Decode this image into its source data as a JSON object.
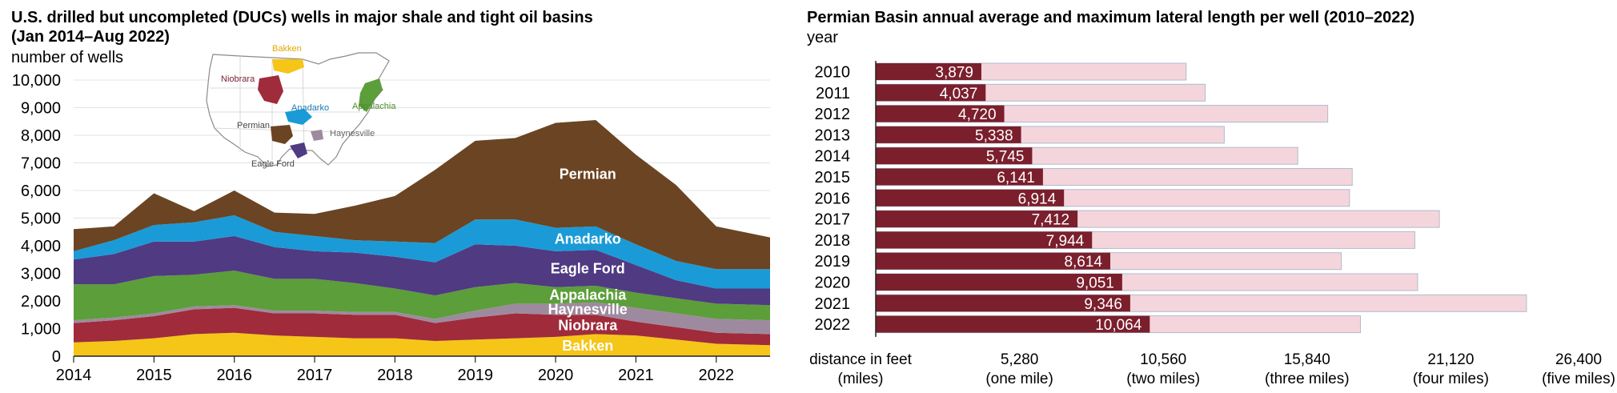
{
  "left_chart": {
    "title_line1": "U.S. drilled but uncompleted (DUCs) wells in major shale and tight oil basins",
    "title_line2": "(Jan 2014–Aug 2022)",
    "ylabel": "number of wells",
    "map_labels": [
      "Bakken",
      "Niobrara",
      "Anadarko",
      "Appalachia",
      "Permian",
      "Haynesville",
      "Eagle Ford"
    ]
  },
  "right_chart": {
    "title": "Permian Basin annual average and maximum lateral length per well (2010–2022)",
    "ylabel": "year"
  },
  "chart_data": [
    {
      "type": "area",
      "stacked": true,
      "title": "U.S. drilled but uncompleted (DUCs) wells in major shale and tight oil basins (Jan 2014–Aug 2022)",
      "ylabel": "number of wells",
      "xlabel": "",
      "ylim": [
        0,
        10000
      ],
      "yticks": [
        0,
        1000,
        2000,
        3000,
        4000,
        5000,
        6000,
        7000,
        8000,
        9000,
        10000
      ],
      "ytick_labels": [
        "0",
        "1,000",
        "2,000",
        "3,000",
        "4,000",
        "5,000",
        "6,000",
        "7,000",
        "8,000",
        "9,000",
        "10,000"
      ],
      "xlim": [
        2014,
        2022.67
      ],
      "xticks": [
        2014,
        2015,
        2016,
        2017,
        2018,
        2019,
        2020,
        2021,
        2022
      ],
      "x": [
        2014.0,
        2014.5,
        2015.0,
        2015.5,
        2016.0,
        2016.5,
        2017.0,
        2017.5,
        2018.0,
        2018.5,
        2019.0,
        2019.5,
        2020.0,
        2020.5,
        2021.0,
        2021.5,
        2022.0,
        2022.67
      ],
      "series": [
        {
          "name": "Bakken",
          "color": "#f5c518",
          "values": [
            500,
            550,
            650,
            800,
            850,
            750,
            700,
            650,
            650,
            550,
            600,
            650,
            700,
            800,
            750,
            600,
            450,
            400
          ]
        },
        {
          "name": "Niobrara",
          "color": "#a02b3b",
          "values": [
            700,
            750,
            800,
            900,
            900,
            800,
            850,
            850,
            850,
            650,
            800,
            900,
            800,
            700,
            500,
            450,
            400,
            400
          ]
        },
        {
          "name": "Haynesville",
          "color": "#9e8a9e",
          "values": [
            100,
            100,
            100,
            100,
            100,
            100,
            100,
            100,
            100,
            150,
            250,
            350,
            400,
            450,
            500,
            500,
            500,
            500
          ]
        },
        {
          "name": "Appalachia",
          "color": "#5b9e3a",
          "values": [
            1300,
            1200,
            1350,
            1150,
            1250,
            1150,
            1150,
            1050,
            850,
            850,
            850,
            750,
            600,
            600,
            550,
            550,
            550,
            550
          ]
        },
        {
          "name": "Eagle Ford",
          "color": "#503a82",
          "values": [
            900,
            1100,
            1250,
            1200,
            1250,
            1150,
            1000,
            1100,
            1150,
            1200,
            1550,
            1350,
            1300,
            1300,
            1000,
            650,
            550,
            600
          ]
        },
        {
          "name": "Anadarko",
          "color": "#1a9bd7",
          "values": [
            300,
            500,
            600,
            700,
            750,
            550,
            550,
            450,
            550,
            700,
            900,
            950,
            850,
            850,
            750,
            700,
            700,
            700
          ]
        },
        {
          "name": "Permian",
          "color": "#6b4423",
          "values": [
            800,
            500,
            1150,
            400,
            900,
            700,
            800,
            1250,
            1650,
            2650,
            2850,
            2950,
            3800,
            3850,
            3250,
            2750,
            1550,
            1150
          ]
        }
      ]
    },
    {
      "type": "bar",
      "orientation": "horizontal",
      "title": "Permian Basin annual average and maximum lateral length per well (2010–2022)",
      "ylabel": "year",
      "xlabel": "distance in feet (miles)",
      "xlim": [
        0,
        26400
      ],
      "xticks": [
        5280,
        10560,
        15840,
        21120,
        26400
      ],
      "xtick_labels": [
        "5,280",
        "10,560",
        "15,840",
        "21,120",
        "26,400"
      ],
      "xtick_sublabels": [
        "(one mile)",
        "(two miles)",
        "(three miles)",
        "(four miles)",
        "(five miles)"
      ],
      "xlabel_line1": "distance in feet",
      "xlabel_line2": "(miles)",
      "categories": [
        "2010",
        "2011",
        "2012",
        "2013",
        "2014",
        "2015",
        "2016",
        "2017",
        "2018",
        "2019",
        "2020",
        "2021",
        "2022"
      ],
      "series": [
        {
          "name": "",
          "color": "#7b1f2d",
          "values": [
            3879,
            4037,
            4720,
            5338,
            5745,
            6141,
            6914,
            7412,
            7944,
            8614,
            9051,
            9346,
            10064
          ],
          "labels": [
            "3,879",
            "4,037",
            "4,720",
            "5,338",
            "5,745",
            "6,141",
            "6,914",
            "7,412",
            "7,944",
            "8,614",
            "9,051",
            "9,346",
            "10,064"
          ]
        },
        {
          "name": "",
          "color": "#f5d5dc",
          "values": [
            11400,
            12100,
            16600,
            12800,
            15500,
            17500,
            17400,
            20700,
            19800,
            17100,
            19900,
            23900,
            17800
          ]
        }
      ]
    }
  ]
}
